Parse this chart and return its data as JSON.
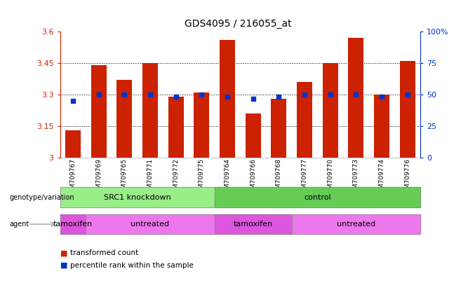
{
  "title": "GDS4095 / 216055_at",
  "samples": [
    "GSM709767",
    "GSM709769",
    "GSM709765",
    "GSM709771",
    "GSM709772",
    "GSM709775",
    "GSM709764",
    "GSM709766",
    "GSM709768",
    "GSM709777",
    "GSM709770",
    "GSM709773",
    "GSM709774",
    "GSM709776"
  ],
  "bar_values": [
    3.13,
    3.44,
    3.37,
    3.45,
    3.29,
    3.31,
    3.56,
    3.21,
    3.28,
    3.36,
    3.45,
    3.57,
    3.3,
    3.46
  ],
  "dot_values": [
    3.27,
    3.3,
    3.3,
    3.3,
    3.29,
    3.3,
    3.29,
    3.28,
    3.29,
    3.3,
    3.3,
    3.3,
    3.29,
    3.3
  ],
  "ylim_left": [
    3.0,
    3.6
  ],
  "ylim_right": [
    0,
    100
  ],
  "yticks_left": [
    3.0,
    3.15,
    3.3,
    3.45,
    3.6
  ],
  "ytick_labels_left": [
    "3",
    "3.15",
    "3.3",
    "3.45",
    "3.6"
  ],
  "yticks_right": [
    0,
    25,
    50,
    75,
    100
  ],
  "ytick_labels_right": [
    "0",
    "25",
    "50",
    "75",
    "100%"
  ],
  "bar_color": "#cc2200",
  "dot_color": "#0033cc",
  "axis_left_color": "#cc2200",
  "axis_right_color": "#0033cc",
  "dotted_lines": [
    3.15,
    3.3,
    3.45
  ],
  "bar_width": 0.6,
  "base_value": 3.0,
  "geno_groups": [
    {
      "label": "SRC1 knockdown",
      "start": 0,
      "end": 5,
      "color": "#99ee88"
    },
    {
      "label": "control",
      "start": 6,
      "end": 13,
      "color": "#66cc55"
    }
  ],
  "agent_groups": [
    {
      "label": "tamoxifen",
      "start": 0,
      "end": 0,
      "color": "#dd55dd"
    },
    {
      "label": "untreated",
      "start": 1,
      "end": 5,
      "color": "#ee77ee"
    },
    {
      "label": "tamoxifen",
      "start": 6,
      "end": 8,
      "color": "#dd55dd"
    },
    {
      "label": "untreated",
      "start": 9,
      "end": 13,
      "color": "#ee77ee"
    }
  ],
  "legend_bar_color": "#cc2200",
  "legend_dot_color": "#0033cc"
}
